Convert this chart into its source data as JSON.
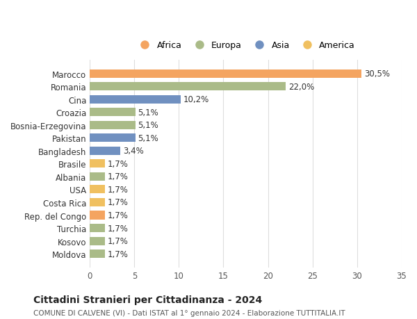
{
  "countries": [
    "Marocco",
    "Romania",
    "Cina",
    "Croazia",
    "Bosnia-Erzegovina",
    "Pakistan",
    "Bangladesh",
    "Brasile",
    "Albania",
    "USA",
    "Costa Rica",
    "Rep. del Congo",
    "Turchia",
    "Kosovo",
    "Moldova"
  ],
  "values": [
    30.5,
    22.0,
    10.2,
    5.1,
    5.1,
    5.1,
    3.4,
    1.7,
    1.7,
    1.7,
    1.7,
    1.7,
    1.7,
    1.7,
    1.7
  ],
  "labels": [
    "30,5%",
    "22,0%",
    "10,2%",
    "5,1%",
    "5,1%",
    "5,1%",
    "3,4%",
    "1,7%",
    "1,7%",
    "1,7%",
    "1,7%",
    "1,7%",
    "1,7%",
    "1,7%",
    "1,7%"
  ],
  "continents": [
    "Africa",
    "Europa",
    "Asia",
    "Europa",
    "Europa",
    "Asia",
    "Asia",
    "America",
    "Europa",
    "America",
    "America",
    "Africa",
    "Europa",
    "Europa",
    "Europa"
  ],
  "continent_colors": {
    "Africa": "#F4A460",
    "Europa": "#AABB88",
    "Asia": "#7090C0",
    "America": "#F0C060"
  },
  "legend_order": [
    "Africa",
    "Europa",
    "Asia",
    "America"
  ],
  "title": "Cittadini Stranieri per Cittadinanza - 2024",
  "subtitle": "COMUNE DI CALVENE (VI) - Dati ISTAT al 1° gennaio 2024 - Elaborazione TUTTITALIA.IT",
  "xlim": [
    0,
    35
  ],
  "xticks": [
    0,
    5,
    10,
    15,
    20,
    25,
    30,
    35
  ],
  "background_color": "#ffffff",
  "grid_color": "#dddddd",
  "bar_height": 0.65,
  "label_fontsize": 8.5,
  "tick_fontsize": 8.5,
  "title_fontsize": 10,
  "subtitle_fontsize": 7.5
}
